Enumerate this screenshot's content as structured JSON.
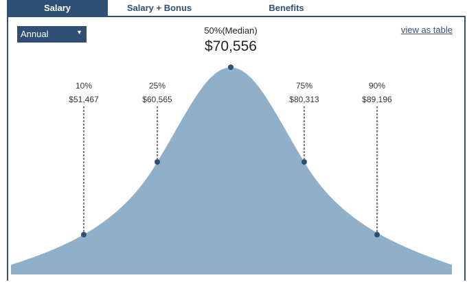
{
  "tabs": [
    {
      "label": "Salary",
      "active": true
    },
    {
      "label": "Salary + Bonus",
      "active": false
    },
    {
      "label": "Benefits",
      "active": false
    }
  ],
  "period_select": {
    "value": "Annual"
  },
  "view_as_table": "view as table",
  "median": {
    "label": "50%(Median)",
    "value": "$70,556"
  },
  "percentiles": [
    {
      "pct": "10%",
      "value": "$51,467"
    },
    {
      "pct": "25%",
      "value": "$60,565"
    },
    {
      "pct": "75%",
      "value": "$80,313"
    },
    {
      "pct": "90%",
      "value": "$89,196"
    }
  ],
  "colors": {
    "accent": "#2f4f74",
    "curve_fill": "#90afc9",
    "marker": "#2f4f74"
  }
}
